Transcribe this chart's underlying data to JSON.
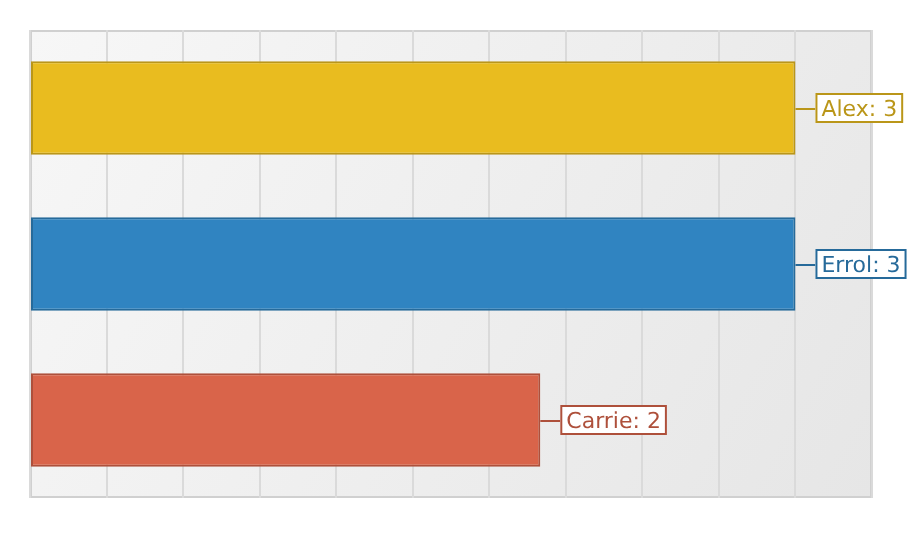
{
  "chart_data": {
    "type": "bar",
    "orientation": "horizontal",
    "categories": [
      null,
      null,
      null
    ],
    "values": [
      3,
      3,
      2
    ],
    "colors": [
      "#e9bc1f",
      "#3084c1",
      "#d9644a"
    ],
    "value_labels": [
      "Alex: 3",
      "Errol: 3",
      "Carrie: 2"
    ],
    "xlim": [
      0,
      3.3
    ],
    "xticks": [
      {
        "value": 0,
        "label": null
      },
      {
        "value": 0.3,
        "label": null
      },
      {
        "value": 0.6,
        "label": null
      },
      {
        "value": 0.9,
        "label": null
      },
      {
        "value": 1.2,
        "label": null
      },
      {
        "value": 1.5,
        "label": null
      },
      {
        "value": 1.8,
        "label": null
      },
      {
        "value": 2.1,
        "label": null
      },
      {
        "value": 2.4,
        "label": null
      },
      {
        "value": 2.7,
        "label": null
      },
      {
        "value": 3.0,
        "label": null
      },
      {
        "value": 3.3,
        "label": null
      }
    ],
    "tick_labels": false,
    "grid": "x"
  }
}
